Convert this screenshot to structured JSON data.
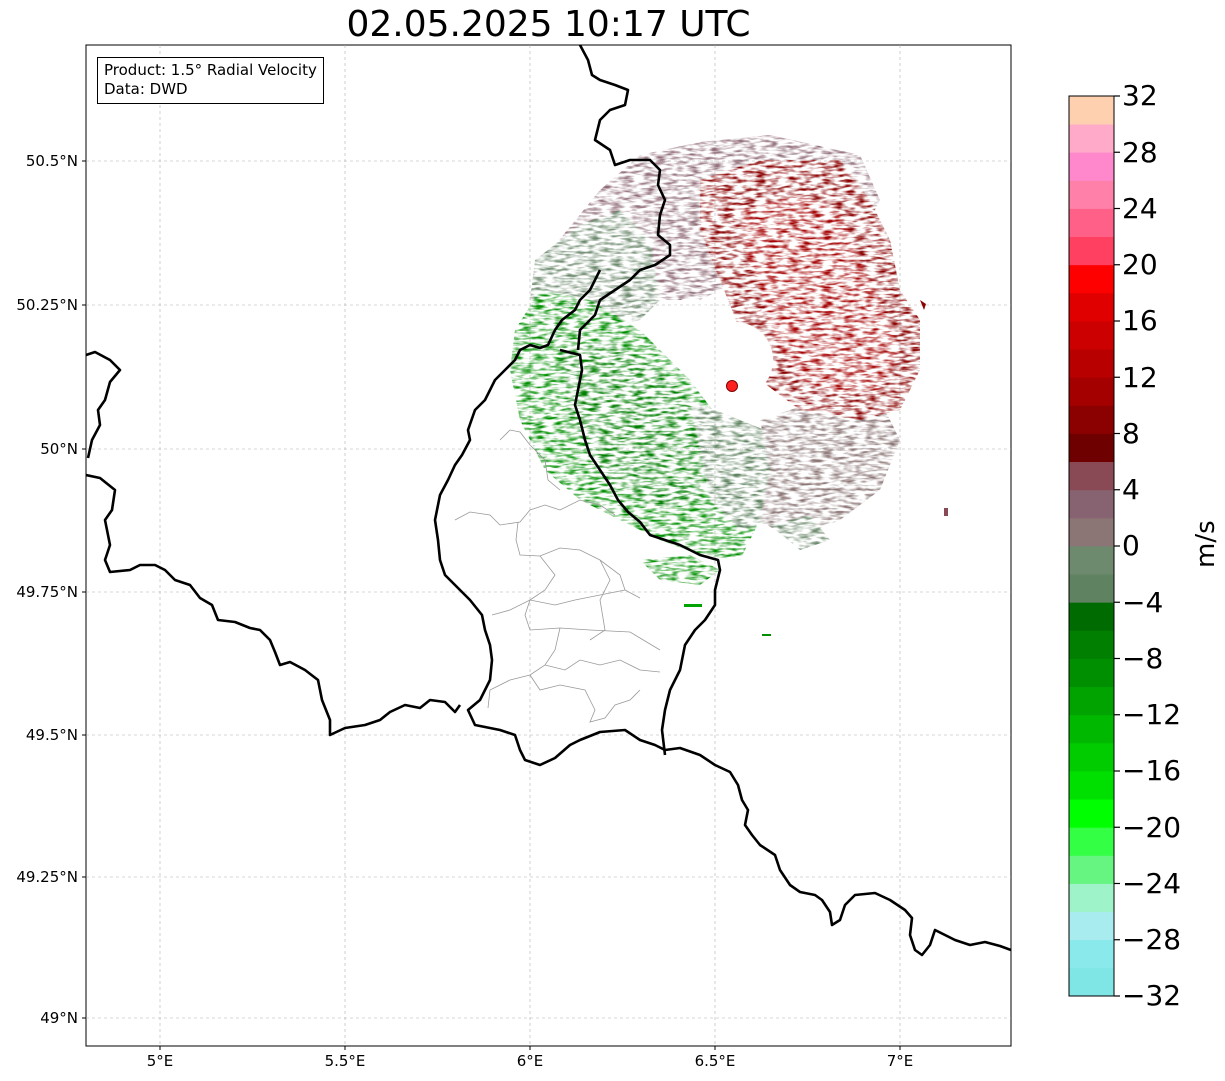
{
  "title": "02.05.2025 10:17 UTC",
  "info_box": {
    "product": "Product: 1.5° Radial Velocity",
    "data_source": "Data: DWD"
  },
  "map": {
    "lon_range": [
      4.8,
      7.3
    ],
    "lat_range": [
      48.95,
      50.7
    ],
    "lat_ticks": [
      {
        "value": 50.5,
        "label": "50.5°N"
      },
      {
        "value": 50.25,
        "label": "50.25°N"
      },
      {
        "value": 50.0,
        "label": "50°N"
      },
      {
        "value": 49.75,
        "label": "49.75°N"
      },
      {
        "value": 49.5,
        "label": "49.5°N"
      },
      {
        "value": 49.25,
        "label": "49.25°N"
      },
      {
        "value": 49.0,
        "label": "49°N"
      }
    ],
    "lon_ticks": [
      {
        "value": 5.0,
        "label": "5°E"
      },
      {
        "value": 5.5,
        "label": "5.5°E"
      },
      {
        "value": 6.0,
        "label": "6°E"
      },
      {
        "value": 6.5,
        "label": "6.5°E"
      },
      {
        "value": 7.0,
        "label": "7°E"
      }
    ],
    "radar_site": {
      "lon": 6.55,
      "lat": 50.11,
      "color": "#ff2020"
    },
    "gridlines": true
  },
  "colorbar": {
    "label": "m/s",
    "min": -32,
    "max": 32,
    "step": 4,
    "tick_values": [
      32,
      28,
      24,
      20,
      16,
      12,
      8,
      4,
      0,
      -4,
      -8,
      -12,
      -16,
      -20,
      -24,
      -28,
      -32
    ],
    "tick_labels": [
      "32",
      "28",
      "24",
      "20",
      "16",
      "12",
      "8",
      "4",
      "0",
      "−4",
      "−8",
      "−12",
      "−16",
      "−20",
      "−24",
      "−28",
      "−32"
    ],
    "colors_bottom_to_top": [
      "#7fe5e5",
      "#8ae9ea",
      "#a8ecf0",
      "#9ff3c8",
      "#66f580",
      "#33ff44",
      "#00ff00",
      "#00e000",
      "#00cc00",
      "#00b800",
      "#00a300",
      "#008f00",
      "#007f00",
      "#006b00",
      "#5f8360",
      "#6d8a6e",
      "#8b7575",
      "#876270",
      "#8a4a55",
      "#6e0000",
      "#8b0000",
      "#a50000",
      "#b80000",
      "#cc0000",
      "#e00000",
      "#ff0000",
      "#ff4060",
      "#ff6088",
      "#ff80a8",
      "#ff88cc",
      "#ffaac8",
      "#ffd0b0"
    ]
  }
}
